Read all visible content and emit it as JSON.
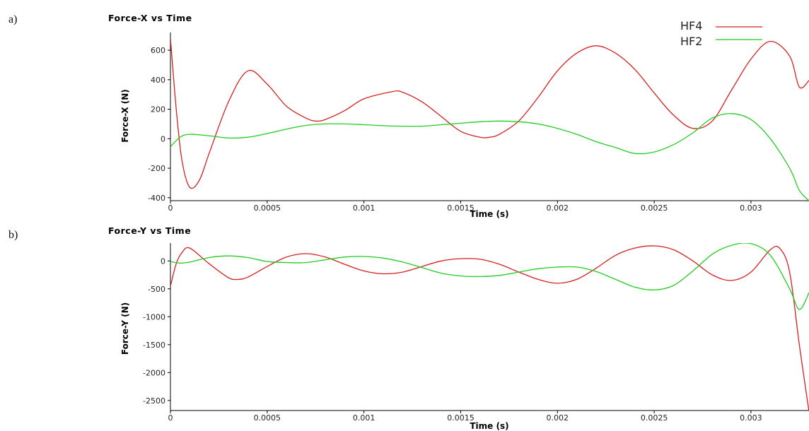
{
  "panel_labels": [
    "a)",
    "b)"
  ],
  "legend": [
    {
      "name": "HF4",
      "color": "#d42020"
    },
    {
      "name": "HF2",
      "color": "#22cc22"
    }
  ],
  "chart_data": [
    {
      "type": "line",
      "title": "Force-X vs Time",
      "xlabel": "Time (s)",
      "ylabel": "Force-X (N)",
      "xlim": [
        0,
        0.0033
      ],
      "ylim": [
        -420,
        720
      ],
      "xticks": [
        0,
        0.0005,
        0.001,
        0.0015,
        0.002,
        0.0025,
        0.003
      ],
      "xtick_labels": [
        "0",
        "0.0005",
        "0.001",
        "0.0015",
        "0.002",
        "0.0025",
        "0.003"
      ],
      "yticks": [
        600,
        400,
        200,
        0,
        -200,
        -400
      ],
      "ytick_labels": [
        "600",
        "400",
        "200",
        "0",
        "-200",
        "-400"
      ],
      "series": [
        {
          "name": "HF4",
          "color": "#d42020",
          "x": [
            0,
            3e-05,
            6e-05,
            0.0001,
            0.00015,
            0.0002,
            0.0003,
            0.0004,
            0.0005,
            0.0006,
            0.0007,
            0.00075,
            0.0008,
            0.0009,
            0.001,
            0.00115,
            0.0012,
            0.0013,
            0.0014,
            0.0015,
            0.0016,
            0.00165,
            0.0017,
            0.0018,
            0.0019,
            0.002,
            0.0021,
            0.0022,
            0.0023,
            0.0024,
            0.0025,
            0.0026,
            0.0027,
            0.0028,
            0.0029,
            0.003,
            0.0031,
            0.0032,
            0.00325,
            0.0033
          ],
          "y": [
            680,
            200,
            -150,
            -330,
            -280,
            -100,
            250,
            460,
            370,
            220,
            140,
            120,
            130,
            190,
            270,
            320,
            315,
            250,
            150,
            50,
            10,
            10,
            30,
            120,
            280,
            460,
            580,
            630,
            580,
            470,
            310,
            160,
            70,
            120,
            330,
            540,
            660,
            560,
            350,
            395
          ]
        },
        {
          "name": "HF2",
          "color": "#22cc22",
          "x": [
            0,
            5e-05,
            0.0001,
            0.0002,
            0.0003,
            0.0004,
            0.0005,
            0.0006,
            0.0007,
            0.0008,
            0.0009,
            0.001,
            0.0011,
            0.0012,
            0.0013,
            0.0014,
            0.0015,
            0.0016,
            0.0017,
            0.0018,
            0.0019,
            0.002,
            0.0021,
            0.0022,
            0.0023,
            0.0024,
            0.0025,
            0.0026,
            0.0027,
            0.0028,
            0.0029,
            0.003,
            0.0031,
            0.0032,
            0.00325,
            0.0033
          ],
          "y": [
            -55,
            10,
            30,
            20,
            5,
            10,
            35,
            65,
            90,
            100,
            100,
            95,
            88,
            85,
            85,
            95,
            105,
            115,
            120,
            115,
            100,
            70,
            30,
            -20,
            -60,
            -100,
            -90,
            -40,
            40,
            140,
            170,
            130,
            0,
            -200,
            -350,
            -420
          ]
        }
      ]
    },
    {
      "type": "line",
      "title": "Force-Y vs Time",
      "xlabel": "Time (s)",
      "ylabel": "Force-Y (N)",
      "xlim": [
        0,
        0.0033
      ],
      "ylim": [
        -2680,
        320
      ],
      "xticks": [
        0,
        0.0005,
        0.001,
        0.0015,
        0.002,
        0.0025,
        0.003
      ],
      "xtick_labels": [
        "0",
        "0.0005",
        "0.001",
        "0.0015",
        "0.002",
        "0.0025",
        "0.003"
      ],
      "yticks": [
        0,
        -500,
        -1000,
        -1500,
        -2000,
        -2500
      ],
      "ytick_labels": [
        "0",
        "-500",
        "-1000",
        "-1500",
        "-2000",
        "-2500"
      ],
      "series": [
        {
          "name": "HF4",
          "color": "#d42020",
          "x": [
            0,
            3e-05,
            6e-05,
            0.0001,
            0.0002,
            0.0003,
            0.00035,
            0.0004,
            0.0005,
            0.0006,
            0.0007,
            0.0008,
            0.0009,
            0.001,
            0.0011,
            0.0012,
            0.0013,
            0.0014,
            0.0015,
            0.0016,
            0.0017,
            0.0018,
            0.0019,
            0.002,
            0.0021,
            0.0022,
            0.0023,
            0.0024,
            0.0025,
            0.0026,
            0.0027,
            0.0028,
            0.0029,
            0.003,
            0.0031,
            0.00315,
            0.0032,
            0.00325,
            0.0033
          ],
          "y": [
            -450,
            -50,
            150,
            230,
            -50,
            -300,
            -330,
            -290,
            -100,
            70,
            130,
            70,
            -60,
            -180,
            -230,
            -200,
            -100,
            0,
            40,
            30,
            -60,
            -200,
            -330,
            -400,
            -330,
            -130,
            100,
            230,
            270,
            200,
            0,
            -250,
            -350,
            -200,
            200,
            220,
            -200,
            -1500,
            -2700
          ]
        },
        {
          "name": "HF2",
          "color": "#22cc22",
          "x": [
            0,
            5e-05,
            0.0001,
            0.0002,
            0.0003,
            0.0004,
            0.0005,
            0.0006,
            0.0007,
            0.0008,
            0.0009,
            0.001,
            0.0011,
            0.0012,
            0.0013,
            0.0014,
            0.0015,
            0.0016,
            0.0017,
            0.0018,
            0.0019,
            0.002,
            0.0021,
            0.0022,
            0.0023,
            0.0024,
            0.0025,
            0.0026,
            0.0027,
            0.0028,
            0.0029,
            0.003,
            0.0031,
            0.0032,
            0.00325,
            0.0033
          ],
          "y": [
            -10,
            -40,
            -20,
            60,
            90,
            60,
            -10,
            -30,
            -30,
            20,
            70,
            80,
            50,
            -20,
            -120,
            -220,
            -270,
            -280,
            -260,
            -200,
            -140,
            -110,
            -110,
            -190,
            -330,
            -470,
            -520,
            -440,
            -180,
            120,
            280,
            310,
            100,
            -500,
            -870,
            -570
          ]
        }
      ]
    }
  ]
}
